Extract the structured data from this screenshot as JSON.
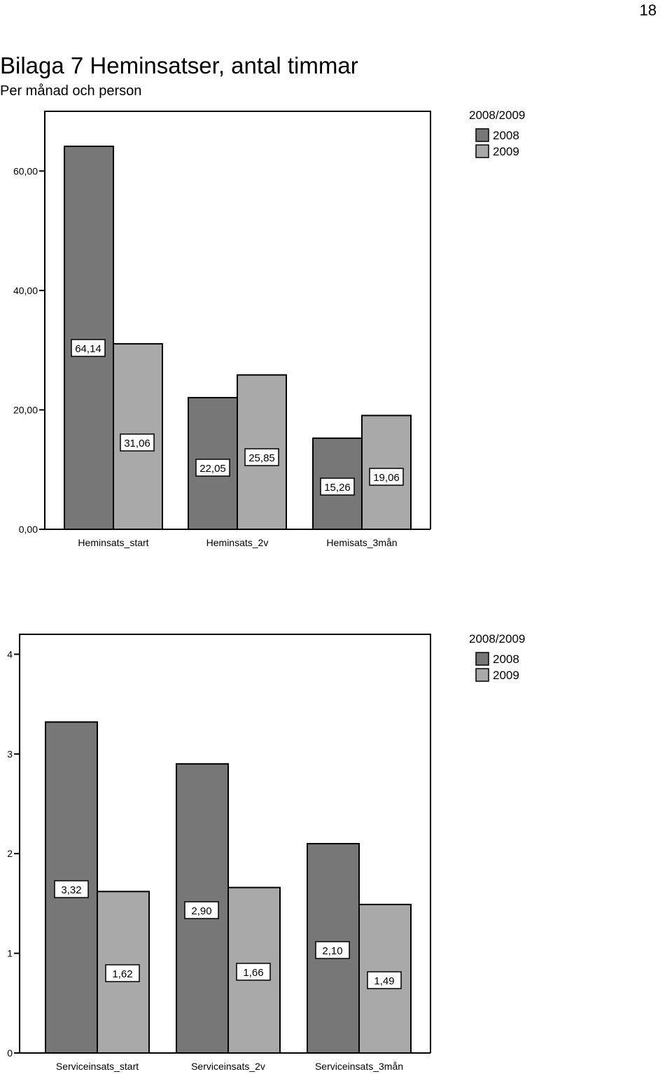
{
  "page": {
    "number": "18",
    "title": "Bilaga 7 Heminsatser, antal timmar",
    "subtitle": "Per månad och person"
  },
  "colors": {
    "series_2008": "#777777",
    "series_2009": "#a9a9a9",
    "axis": "#000000"
  },
  "chart_data": [
    {
      "type": "bar",
      "title": "",
      "xlabel": "",
      "ylabel": "",
      "categories": [
        "Heminsats_start",
        "Heminsats_2v",
        "Hemisats_3mån"
      ],
      "series": [
        {
          "name": "2008",
          "values": [
            64.14,
            22.05,
            15.26
          ],
          "labels": [
            "64,14",
            "22,05",
            "15,26"
          ]
        },
        {
          "name": "2009",
          "values": [
            31.06,
            25.85,
            19.06
          ],
          "labels": [
            "31,06",
            "25,85",
            "19,06"
          ]
        }
      ],
      "ylim": [
        0,
        70
      ],
      "yticks": [
        0,
        20,
        40,
        60
      ],
      "ytick_labels": [
        "0,00",
        "20,00",
        "40,00",
        "60,00"
      ],
      "legend": {
        "title": "2008/2009",
        "entries": [
          "2008",
          "2009"
        ],
        "position": "top-right"
      },
      "grid": false
    },
    {
      "type": "bar",
      "title": "",
      "xlabel": "",
      "ylabel": "",
      "categories": [
        "Serviceinsats_start",
        "Serviceinsats_2v",
        "Serviceinsats_3mån"
      ],
      "series": [
        {
          "name": "2008",
          "values": [
            3.32,
            2.9,
            2.1
          ],
          "labels": [
            "3,32",
            "2,90",
            "2,10"
          ]
        },
        {
          "name": "2009",
          "values": [
            1.62,
            1.66,
            1.49
          ],
          "labels": [
            "1,62",
            "1,66",
            "1,49"
          ]
        }
      ],
      "ylim": [
        0,
        4.2
      ],
      "yticks": [
        0,
        1,
        2,
        3,
        4
      ],
      "ytick_labels": [
        "0",
        "1",
        "2",
        "3",
        "4"
      ],
      "legend": {
        "title": "2008/2009",
        "entries": [
          "2008",
          "2009"
        ],
        "position": "top-right"
      },
      "grid": false
    }
  ]
}
